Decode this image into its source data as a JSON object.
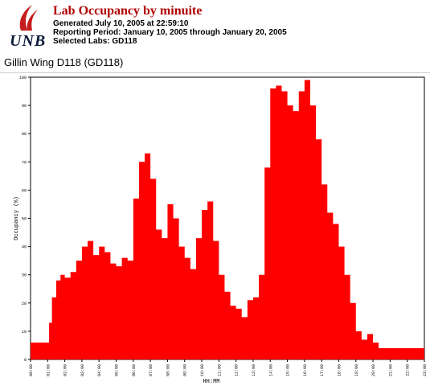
{
  "header": {
    "logo_text": "UNB",
    "title": "Lab Occupancy by minuite",
    "generated": "Generated July 10, 2005 at 22:59:10",
    "reporting_period": "Reporting Period: January 10, 2005 through January 20, 2005",
    "selected_labs": "Selected Labs: GD118"
  },
  "lab_heading": "Gillin Wing D118 (GD118)",
  "colors": {
    "title": "#b00000",
    "series": "#ff0000",
    "logo_flame": "#c41e1e"
  },
  "icons": {
    "logo": "unb-flame-logo-icon"
  },
  "chart_data": {
    "type": "area",
    "title": "",
    "xlabel": "HH:MM",
    "ylabel": "Occupancy (%)",
    "xlim": [
      "00:00",
      "23:00"
    ],
    "ylim": [
      0,
      100
    ],
    "grid": false,
    "legend": "none",
    "x_tick_labels": [
      "00:00",
      "01:00",
      "02:00",
      "03:00",
      "04:00",
      "05:00",
      "06:00",
      "07:00",
      "08:00",
      "09:00",
      "10:00",
      "11:00",
      "12:00",
      "13:00",
      "14:00",
      "15:00",
      "16:00",
      "17:00",
      "18:00",
      "19:00",
      "20:00",
      "21:00",
      "22:00",
      "23:00"
    ],
    "y_tick_labels": [
      "0",
      "10",
      "20",
      "30",
      "40",
      "50",
      "60",
      "70",
      "80",
      "90",
      "100"
    ],
    "series": [
      {
        "x": [
          "00:00",
          "00:30",
          "01:00",
          "01:05",
          "01:15",
          "01:30",
          "01:45",
          "02:00",
          "02:20",
          "02:40",
          "03:00",
          "03:20",
          "03:40",
          "04:00",
          "04:20",
          "04:40",
          "05:00",
          "05:20",
          "05:40",
          "06:00",
          "06:20",
          "06:40",
          "07:00",
          "07:20",
          "07:40",
          "08:00",
          "08:20",
          "08:40",
          "09:00",
          "09:20",
          "09:40",
          "10:00",
          "10:20",
          "10:40",
          "11:00",
          "11:20",
          "11:40",
          "12:00",
          "12:20",
          "12:40",
          "13:00",
          "13:20",
          "13:40",
          "14:00",
          "14:20",
          "14:40",
          "15:00",
          "15:20",
          "15:40",
          "16:00",
          "16:20",
          "16:40",
          "17:00",
          "17:20",
          "17:40",
          "18:00",
          "18:20",
          "18:40",
          "19:00",
          "19:20",
          "19:40",
          "20:00",
          "20:20",
          "20:40",
          "21:00",
          "21:20",
          "21:40",
          "22:00",
          "22:20",
          "22:40",
          "23:00"
        ],
        "y": [
          6,
          6,
          6,
          13,
          22,
          28,
          30,
          29,
          31,
          35,
          40,
          42,
          37,
          40,
          38,
          34,
          33,
          36,
          35,
          57,
          70,
          73,
          64,
          46,
          43,
          55,
          50,
          40,
          36,
          32,
          43,
          53,
          56,
          42,
          30,
          24,
          19,
          18,
          15,
          21,
          22,
          30,
          68,
          96,
          97,
          95,
          90,
          88,
          95,
          99,
          90,
          78,
          62,
          52,
          48,
          40,
          30,
          20,
          10,
          7,
          9,
          6,
          4,
          4,
          4,
          4,
          4,
          4,
          4,
          4,
          4
        ]
      }
    ]
  }
}
